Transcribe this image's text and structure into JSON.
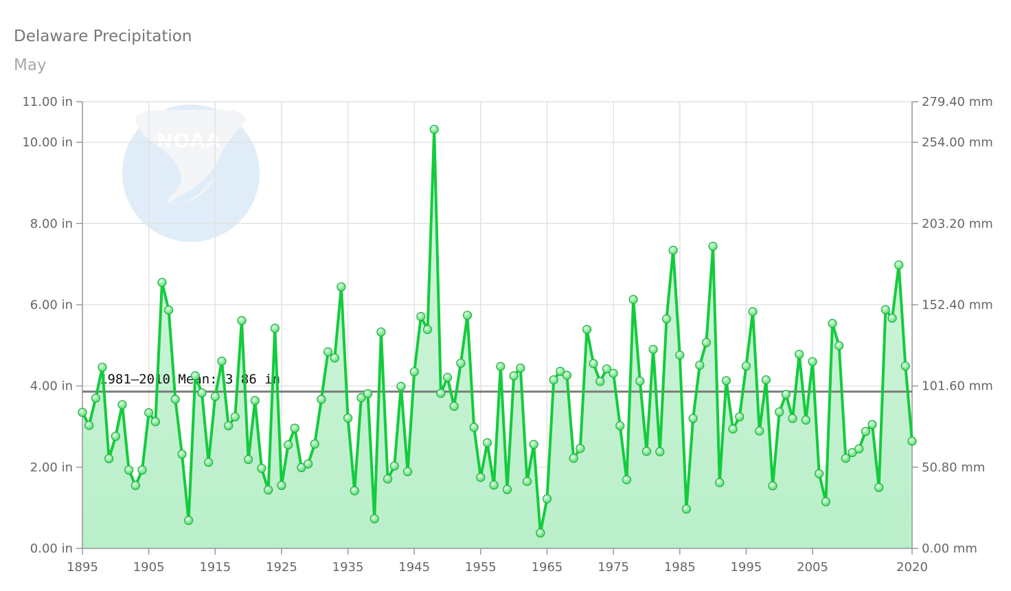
{
  "chart_data": {
    "type": "line",
    "title": "Delaware Precipitation",
    "subtitle": "May",
    "x": [
      1895,
      1896,
      1897,
      1898,
      1899,
      1900,
      1901,
      1902,
      1903,
      1904,
      1905,
      1906,
      1907,
      1908,
      1909,
      1910,
      1911,
      1912,
      1913,
      1914,
      1915,
      1916,
      1917,
      1918,
      1919,
      1920,
      1921,
      1922,
      1923,
      1924,
      1925,
      1926,
      1927,
      1928,
      1929,
      1930,
      1931,
      1932,
      1933,
      1934,
      1935,
      1936,
      1937,
      1938,
      1939,
      1940,
      1941,
      1942,
      1943,
      1944,
      1945,
      1946,
      1947,
      1948,
      1949,
      1950,
      1951,
      1952,
      1953,
      1954,
      1955,
      1956,
      1957,
      1958,
      1959,
      1960,
      1961,
      1962,
      1963,
      1964,
      1965,
      1966,
      1967,
      1968,
      1969,
      1970,
      1971,
      1972,
      1973,
      1974,
      1975,
      1976,
      1977,
      1978,
      1979,
      1980,
      1981,
      1982,
      1983,
      1984,
      1985,
      1986,
      1987,
      1988,
      1989,
      1990,
      1991,
      1992,
      1993,
      1994,
      1995,
      1996,
      1997,
      1998,
      1999,
      2000,
      2001,
      2002,
      2003,
      2004,
      2005,
      2006,
      2007,
      2008,
      2009,
      2010,
      2011,
      2012,
      2013,
      2014,
      2015,
      2016,
      2017,
      2018,
      2019,
      2020
    ],
    "series": [
      {
        "values": [
          3.35,
          3.03,
          3.7,
          4.46,
          2.21,
          2.76,
          3.54,
          1.93,
          1.55,
          1.93,
          3.34,
          3.12,
          6.55,
          5.87,
          3.67,
          2.32,
          0.69,
          4.25,
          3.83,
          2.12,
          3.74,
          4.61,
          3.02,
          3.24,
          5.61,
          2.19,
          3.64,
          1.97,
          1.44,
          5.42,
          1.55,
          2.55,
          2.96,
          1.99,
          2.08,
          2.57,
          3.67,
          4.84,
          4.69,
          6.44,
          3.21,
          1.42,
          3.71,
          3.81,
          0.73,
          5.33,
          1.71,
          2.03,
          3.99,
          1.89,
          4.35,
          5.71,
          5.39,
          10.32,
          3.82,
          4.21,
          3.5,
          4.56,
          5.74,
          2.98,
          1.75,
          2.6,
          1.56,
          4.48,
          1.45,
          4.25,
          4.44,
          1.65,
          2.56,
          0.38,
          1.22,
          4.15,
          4.36,
          4.26,
          2.22,
          2.46,
          5.39,
          4.55,
          4.11,
          4.42,
          4.31,
          3.02,
          1.69,
          6.13,
          4.12,
          2.39,
          4.9,
          2.38,
          5.65,
          7.34,
          4.76,
          0.97,
          3.2,
          4.51,
          5.07,
          7.44,
          1.62,
          4.13,
          2.94,
          3.24,
          4.49,
          5.83,
          2.89,
          4.15,
          1.54,
          3.36,
          3.79,
          3.2,
          4.78,
          3.16,
          4.6,
          1.84,
          1.15,
          5.54,
          4.99,
          2.22,
          2.36,
          2.45,
          2.88,
          3.05,
          1.5,
          5.88,
          5.67,
          6.98,
          4.49,
          2.64
        ]
      }
    ],
    "mean": {
      "value": 3.86,
      "label": "1981–2010 Mean: 3.86 in"
    },
    "ylim": [
      0,
      11
    ],
    "y_ticks": [
      0,
      2,
      4,
      6,
      8,
      10,
      11
    ],
    "y_tick_labels_left": [
      "0.00 in",
      "2.00 in",
      "4.00 in",
      "6.00 in",
      "8.00 in",
      "10.00 in",
      "11.00 in"
    ],
    "y_tick_labels_right": [
      "0.00 mm",
      "50.80 mm",
      "101.60 mm",
      "152.40 mm",
      "203.20 mm",
      "254.00 mm",
      "279.40 mm"
    ],
    "xlim": [
      1895,
      2020
    ],
    "x_ticks": [
      1895,
      1905,
      1915,
      1925,
      1935,
      1945,
      1955,
      1965,
      1975,
      1985,
      1995,
      2005,
      2020
    ],
    "x_tick_labels": [
      "1895",
      "1905",
      "1915",
      "1925",
      "1935",
      "1945",
      "1955",
      "1965",
      "1975",
      "1985",
      "1995",
      "2005",
      "2020"
    ],
    "grid": true,
    "colors": {
      "line": "#13cc3c",
      "marker": "#3fdc62",
      "area_top": "#d6f6df",
      "area_bottom": "#b9efc9",
      "mean_line": "#7a7a7a",
      "grid": "#e2e2e2",
      "axis": "#999999"
    },
    "watermark": {
      "icon": "noaa-logo-icon",
      "text": "NOAA"
    }
  }
}
